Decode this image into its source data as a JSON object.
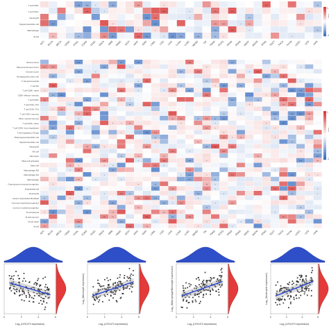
{
  "chart_data": [
    {
      "type": "heatmap",
      "panel": "top",
      "rows": [
        "T cell CD8+",
        "T cell CD4+",
        "Neutrophil",
        "Myeloid dendritic cell",
        "Macrophage",
        "B cell"
      ],
      "columns": [
        "ACC",
        "BLCA",
        "BRCA",
        "CESC",
        "CHOL",
        "COAD",
        "DLBC",
        "ESCA",
        "GBM",
        "HNSC",
        "KICH",
        "KIRC",
        "KIRP",
        "LAML",
        "LGG",
        "LIHC",
        "LUAD",
        "LUSC",
        "MESO",
        "OV",
        "PAAD",
        "PCPG",
        "PRAD",
        "READ",
        "SARC",
        "SKCM",
        "STAD",
        "TGCT",
        "THCA",
        "THYM",
        "UCEC",
        "UCS",
        "UVM"
      ],
      "legend_label": "Cor",
      "legend_range": [
        -1,
        1
      ]
    },
    {
      "type": "heatmap",
      "panel": "bottom",
      "rows": [
        "Stroma score",
        "Microenvironment score",
        "Immune score",
        "Hematopoietic stem cell",
        "T cell gamma delta",
        "T cell NK",
        "T cell CD8+ naive",
        "CD8+ effector memory",
        "T cell CD8+",
        "T cell CD4+ Th2",
        "T cell CD4+ Th1",
        "T cell CD4+ memory",
        "CD4+ central memory",
        "T cell CD4+ naive",
        "T cell CD4+ (non-regulatory)",
        "T cell regulatory (Tregs)",
        "Plasmacytoid dendritic cell",
        "Myeloid dendritic cell",
        "Neutrophil",
        "NK cell",
        "Monocyte",
        "Mast cell activated",
        "Mast cell",
        "Macrophage M2",
        "Macrophage M1",
        "Macrophage",
        "Granulocyte-monocyte progenitor",
        "Endothelial cell",
        "Eosinophil",
        "Cancer associated fibroblast",
        "Common lymphoid progenitor",
        "Common myeloid progenitor",
        "B cell plasma",
        "B cell memory",
        "B cell naive",
        "B cell"
      ],
      "columns": [
        "ACC",
        "BLCA",
        "BRCA",
        "CESC",
        "CHOL",
        "COAD",
        "DLBC",
        "ESCA",
        "GBM",
        "HNSC",
        "KICH",
        "KIRC",
        "KIRP",
        "LAML",
        "LGG",
        "LIHC",
        "LUAD",
        "LUSC",
        "MESO",
        "OV",
        "PAAD",
        "PCPG",
        "PRAD",
        "READ",
        "SARC",
        "SKCM",
        "STAD",
        "TGCT",
        "THCA",
        "THYM",
        "UCEC",
        "UCS",
        "UVM"
      ],
      "legend_label": "Cor",
      "legend_range": [
        -1,
        1
      ]
    },
    {
      "type": "scatter",
      "panel": "scatter-1",
      "xlabel": "Log₂ (LRG473 expression)",
      "ylabel": "",
      "xlim": [
        0,
        6
      ],
      "ylim": [
        1,
        6
      ],
      "fit_slope": -0.25
    },
    {
      "type": "scatter",
      "panel": "scatter-2",
      "xlabel": "Log₂ (LRG473 expression)",
      "ylabel": "Log₂ (Monocyte expression)",
      "xlim": [
        0,
        6
      ],
      "ylim": [
        1,
        7
      ],
      "fit_slope": 0.35
    },
    {
      "type": "scatter",
      "panel": "scatter-3",
      "xlabel": "Log₂ (LRG473 expression)",
      "ylabel": "Log₂ (Macrophage/Monocyte expression)",
      "xlim": [
        0,
        6
      ],
      "ylim": [
        1,
        6
      ],
      "fit_slope": 0.3
    },
    {
      "type": "scatter",
      "panel": "scatter-4",
      "xlabel": "Log₂ (LRG473 expression)",
      "ylabel": "Log₂ (Neutrophil expression)",
      "xlim": [
        0,
        6
      ],
      "ylim": [
        1,
        6
      ],
      "fit_slope": 0.3
    }
  ],
  "colors": {
    "negative": "#3b6fc0",
    "positive": "#d83a3a",
    "density_top": "#2e4fc8",
    "density_right": "#e43a3a",
    "fit": "#1f3fd6"
  },
  "stars": [
    "*",
    "**",
    "***"
  ]
}
